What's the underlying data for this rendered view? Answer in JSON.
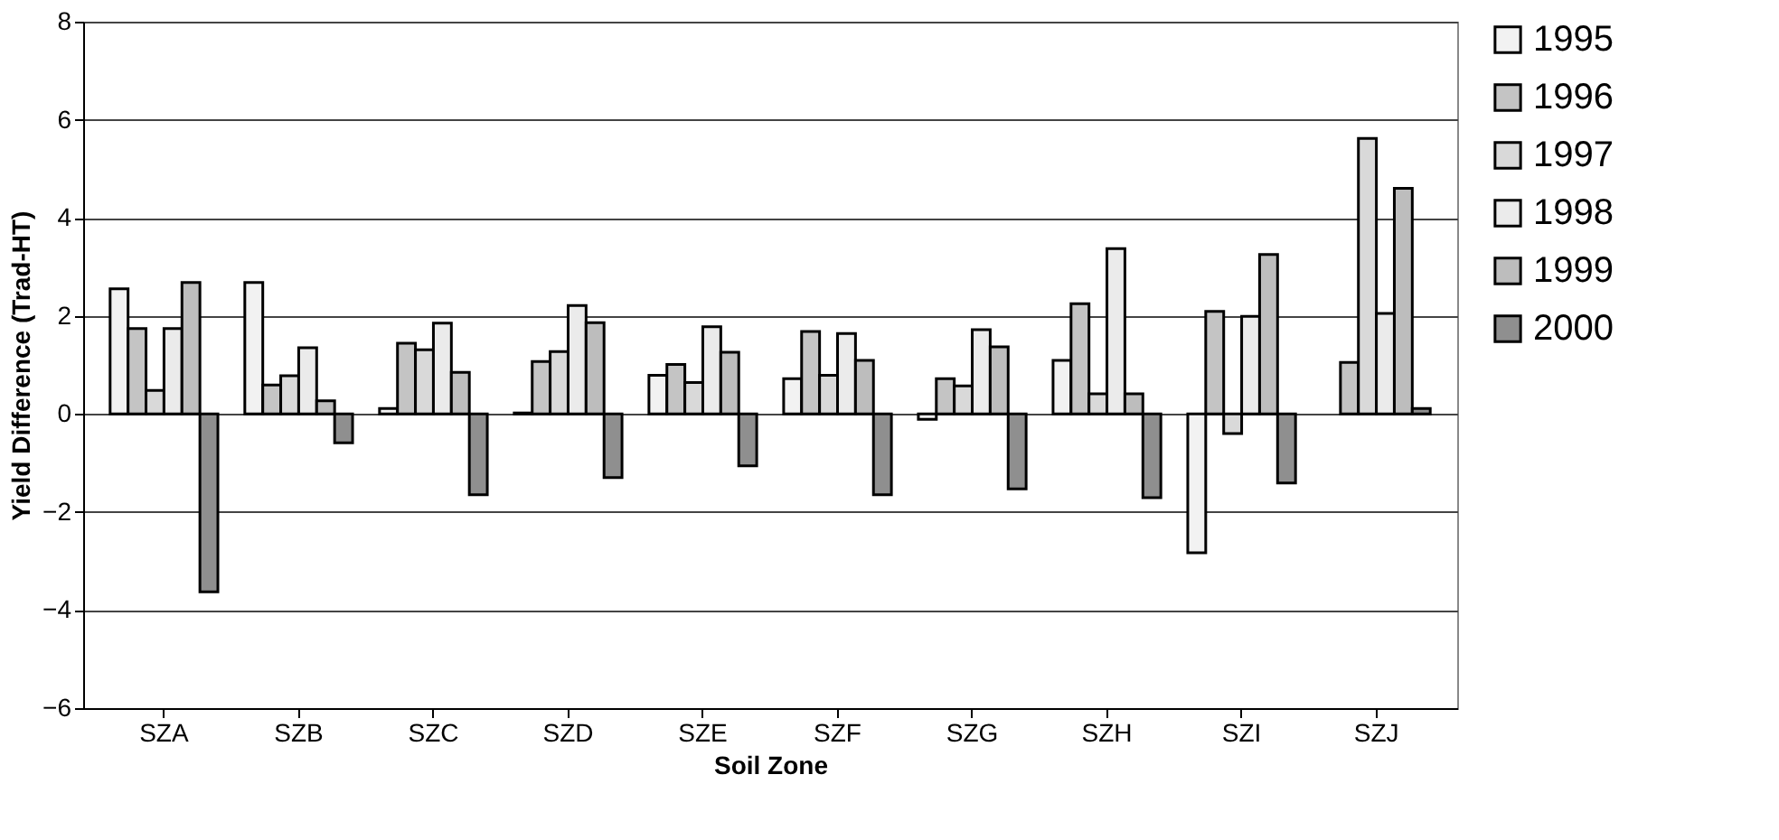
{
  "chart_data": {
    "type": "bar",
    "xlabel": "Soil Zone",
    "ylabel": "Yield Difference (Trad-HT)",
    "categories": [
      "SZA",
      "SZB",
      "SZC",
      "SZD",
      "SZE",
      "SZF",
      "SZG",
      "SZH",
      "SZI",
      "SZJ"
    ],
    "series": [
      {
        "name": "1995",
        "color": "#f2f2f2",
        "values": [
          2.55,
          2.68,
          0.11,
          0.02,
          0.79,
          0.72,
          -0.11,
          1.09,
          -2.83,
          null
        ]
      },
      {
        "name": "1996",
        "color": "#c4c4c4",
        "values": [
          1.74,
          0.59,
          1.44,
          1.07,
          1.01,
          1.68,
          0.72,
          2.25,
          2.09,
          1.05
        ]
      },
      {
        "name": "1997",
        "color": "#d9d9d9",
        "values": [
          0.48,
          0.78,
          1.31,
          1.27,
          0.64,
          0.79,
          0.57,
          0.41,
          -0.4,
          5.62
        ]
      },
      {
        "name": "1998",
        "color": "#ebebeb",
        "values": [
          1.74,
          1.35,
          1.85,
          2.21,
          1.78,
          1.64,
          1.72,
          3.37,
          1.99,
          2.05
        ]
      },
      {
        "name": "1999",
        "color": "#bdbdbd",
        "values": [
          2.68,
          0.27,
          0.85,
          1.86,
          1.26,
          1.09,
          1.37,
          0.41,
          3.25,
          4.6
        ]
      },
      {
        "name": "2000",
        "color": "#8f8f8f",
        "values": [
          -3.63,
          -0.59,
          -1.65,
          -1.3,
          -1.06,
          -1.65,
          -1.53,
          -1.71,
          -1.41,
          0.11
        ]
      }
    ],
    "ylim": [
      -6,
      8
    ],
    "yticks": [
      -6,
      -4,
      -2,
      0,
      2,
      4,
      6,
      8
    ],
    "grid": "y",
    "legend": "right"
  }
}
